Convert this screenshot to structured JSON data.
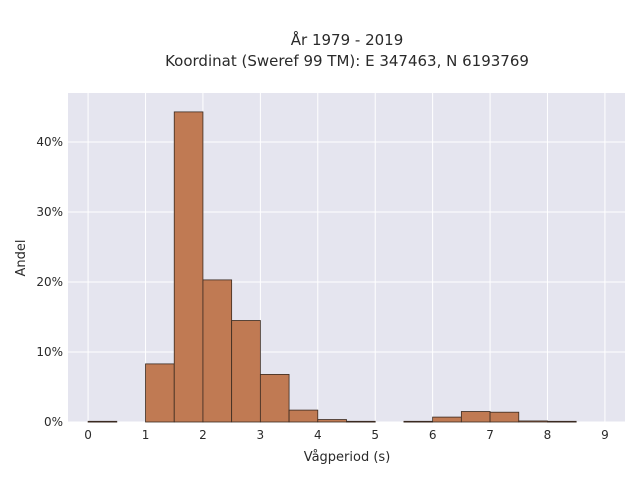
{
  "chart_data": {
    "type": "bar",
    "title": "År 1979 - 2019",
    "subtitle": "Koordinat (Sweref 99 TM): E 347463, N 6193769",
    "xlabel": "Vågperiod (s)",
    "ylabel": "Andel",
    "xlim": [
      -0.35,
      9.35
    ],
    "ylim": [
      0,
      47
    ],
    "x_ticks": [
      "0",
      "1",
      "2",
      "3",
      "4",
      "5",
      "6",
      "7",
      "8",
      "9"
    ],
    "y_ticks": [
      "0%",
      "10%",
      "20%",
      "30%",
      "40%"
    ],
    "bin_width": 0.5,
    "bins": [
      {
        "start": 0.0,
        "value": 0.1
      },
      {
        "start": 1.0,
        "value": 8.3
      },
      {
        "start": 1.5,
        "value": 44.3
      },
      {
        "start": 2.0,
        "value": 20.3
      },
      {
        "start": 2.5,
        "value": 14.5
      },
      {
        "start": 3.0,
        "value": 6.8
      },
      {
        "start": 3.5,
        "value": 1.7
      },
      {
        "start": 4.0,
        "value": 0.35
      },
      {
        "start": 4.5,
        "value": 0.1
      },
      {
        "start": 5.5,
        "value": 0.1
      },
      {
        "start": 6.0,
        "value": 0.7
      },
      {
        "start": 6.5,
        "value": 1.5
      },
      {
        "start": 7.0,
        "value": 1.4
      },
      {
        "start": 7.5,
        "value": 0.15
      },
      {
        "start": 8.0,
        "value": 0.1
      }
    ],
    "grid": true,
    "colors": {
      "bar_fill": "#c07a53",
      "bar_stroke": "#3a2a20",
      "plot_bg": "#e5e5ef",
      "grid": "#ffffff"
    }
  }
}
